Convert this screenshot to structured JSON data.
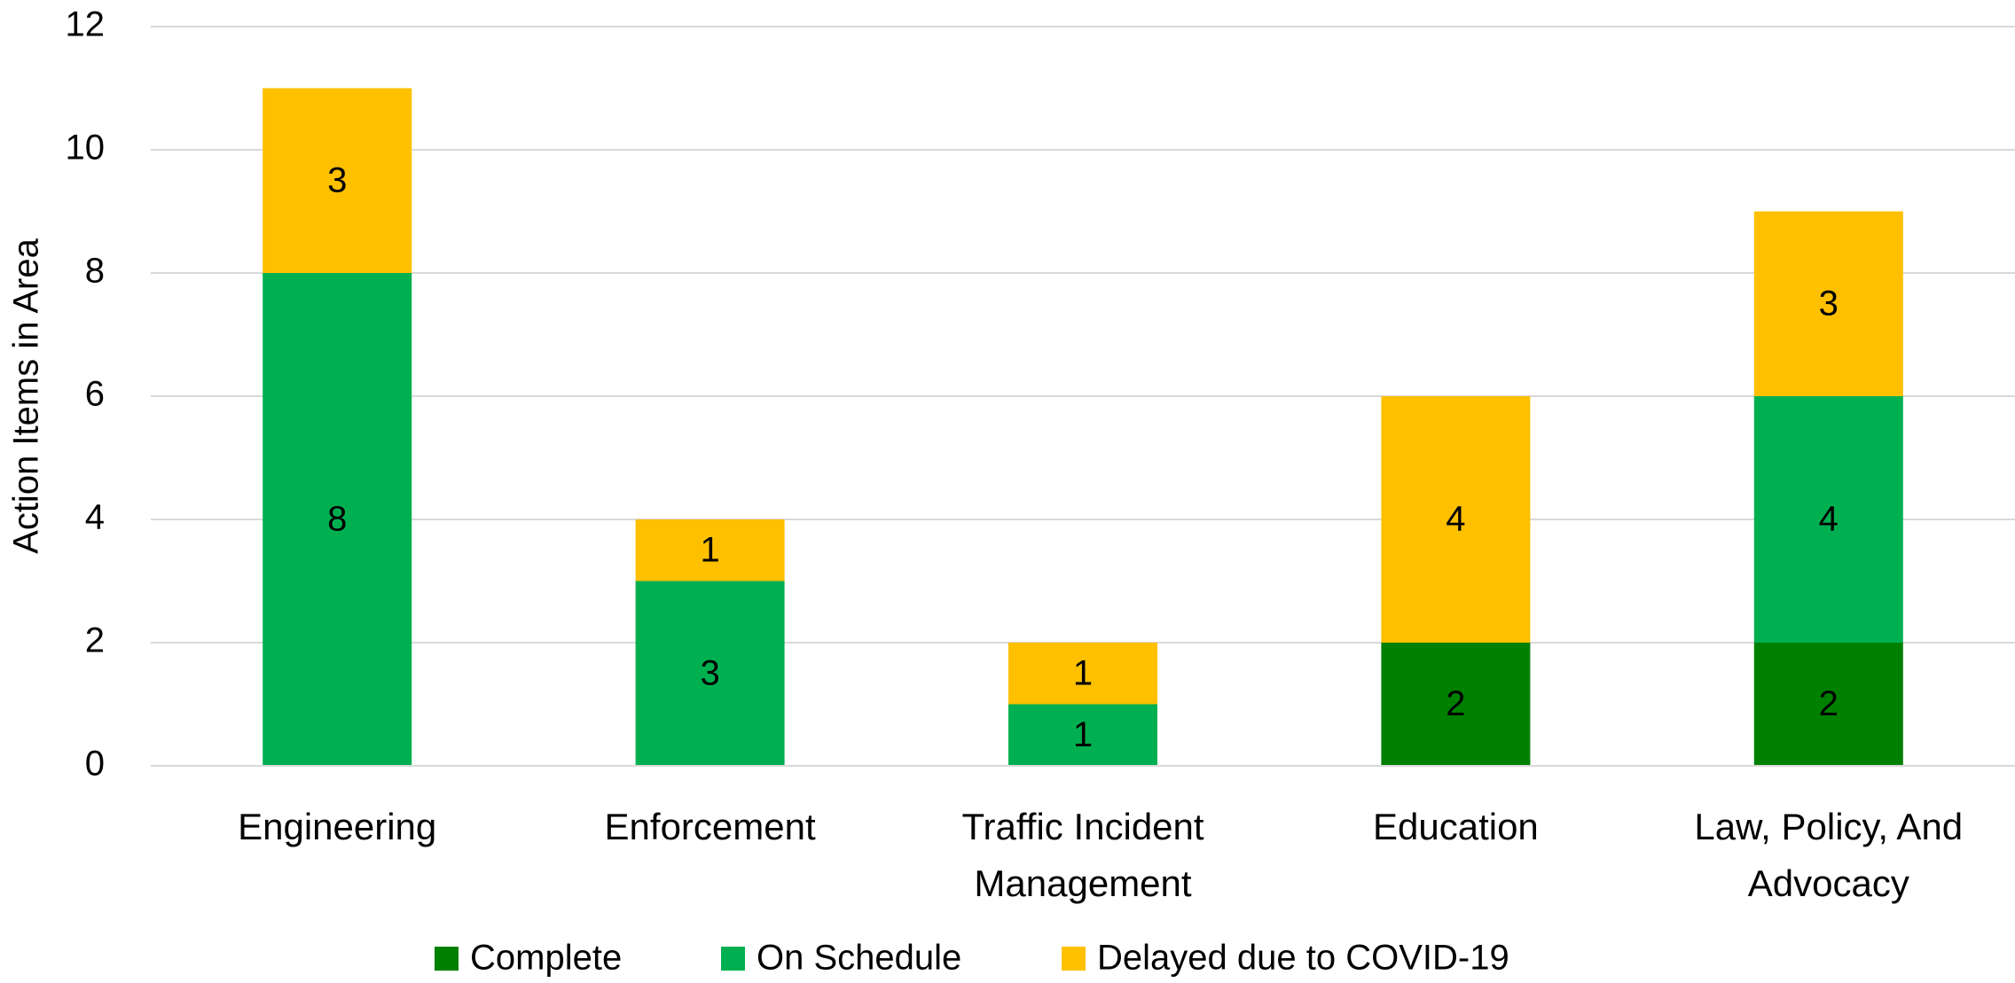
{
  "chart_data": {
    "type": "bar",
    "stacked": true,
    "y_label": "Action Items in Area",
    "categories": [
      "Engineering",
      "Enforcement",
      "Traffic Incident Management",
      "Education",
      "Law, Policy, And Advocacy"
    ],
    "series": [
      {
        "name": "Complete",
        "color": "#008000",
        "values": [
          0,
          0,
          0,
          2,
          2
        ]
      },
      {
        "name": "On Schedule",
        "color": "#00b050",
        "values": [
          8,
          3,
          1,
          0,
          4
        ]
      },
      {
        "name": "Delayed due to COVID-19",
        "color": "#ffc000",
        "values": [
          3,
          1,
          1,
          4,
          3
        ]
      }
    ],
    "ylim": [
      0,
      12
    ],
    "yticks": [
      0,
      2,
      4,
      6,
      8,
      10,
      12
    ],
    "grid": true,
    "legend": "bottom"
  }
}
